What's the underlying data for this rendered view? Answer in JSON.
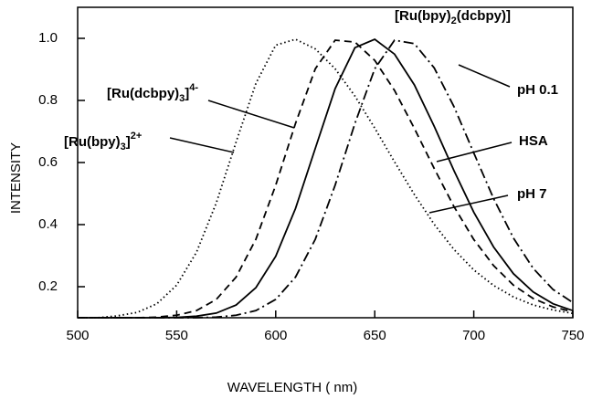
{
  "chart_data": {
    "type": "line",
    "xlabel": "WAVELENGTH  ( nm)",
    "ylabel": "INTENSITY",
    "x": [
      500,
      510,
      520,
      530,
      540,
      550,
      560,
      570,
      580,
      590,
      600,
      610,
      620,
      630,
      640,
      650,
      660,
      670,
      680,
      690,
      700,
      710,
      720,
      730,
      740,
      750
    ],
    "series": [
      {
        "color": "#000000",
        "style": "dotted",
        "values": [
          0.1,
          0.1,
          0.106,
          0.117,
          0.145,
          0.205,
          0.311,
          0.47,
          0.666,
          0.855,
          0.978,
          0.997,
          0.966,
          0.902,
          0.814,
          0.711,
          0.602,
          0.497,
          0.401,
          0.32,
          0.254,
          0.204,
          0.167,
          0.141,
          0.125,
          0.114
        ]
      },
      {
        "color": "#000000",
        "style": "dashed",
        "values": [
          0.1,
          0.1,
          0.1,
          0.1,
          0.102,
          0.108,
          0.123,
          0.159,
          0.231,
          0.353,
          0.527,
          0.726,
          0.902,
          0.994,
          0.988,
          0.929,
          0.832,
          0.71,
          0.581,
          0.458,
          0.352,
          0.268,
          0.205,
          0.162,
          0.135,
          0.119
        ]
      },
      {
        "color": "#000000",
        "style": "solid",
        "values": [
          0.1,
          0.1,
          0.1,
          0.1,
          0.1,
          0.101,
          0.105,
          0.115,
          0.141,
          0.197,
          0.298,
          0.452,
          0.646,
          0.838,
          0.97,
          0.997,
          0.949,
          0.85,
          0.717,
          0.574,
          0.44,
          0.328,
          0.242,
          0.183,
          0.145,
          0.123
        ]
      },
      {
        "color": "#000000",
        "style": "dashdot",
        "values": [
          0.1,
          0.1,
          0.1,
          0.1,
          0.1,
          0.1,
          0.1,
          0.102,
          0.108,
          0.123,
          0.159,
          0.231,
          0.353,
          0.527,
          0.726,
          0.902,
          0.994,
          0.983,
          0.905,
          0.78,
          0.631,
          0.484,
          0.357,
          0.259,
          0.191,
          0.149
        ]
      }
    ],
    "annotations": [
      {
        "parts": [
          {
            "text": "[Ru(bpy)"
          },
          {
            "text": "2",
            "shift": "sub"
          },
          {
            "text": "(dcbpy)]"
          }
        ]
      },
      {
        "parts": [
          {
            "text": "[Ru(dcbpy)"
          },
          {
            "text": "3",
            "shift": "sub"
          },
          {
            "text": "]"
          },
          {
            "text": "4-",
            "shift": "sup"
          }
        ]
      },
      {
        "parts": [
          {
            "text": "[Ru(bpy)"
          },
          {
            "text": "3",
            "shift": "sub"
          },
          {
            "text": "]"
          },
          {
            "text": "2+",
            "shift": "sup"
          }
        ]
      },
      {
        "parts": [
          {
            "text": "pH 0.1"
          }
        ]
      },
      {
        "parts": [
          {
            "text": "HSA"
          }
        ]
      },
      {
        "parts": [
          {
            "text": "pH 7"
          }
        ]
      }
    ],
    "xlim": [
      500,
      750
    ],
    "xticks": [
      500,
      550,
      600,
      650,
      700,
      750
    ],
    "ylim": [
      0.1,
      1.1
    ],
    "yticks": [
      0.2,
      0.4,
      0.6,
      0.8,
      {
        "value": 1,
        "label": "1.0"
      }
    ],
    "grid": false
  }
}
